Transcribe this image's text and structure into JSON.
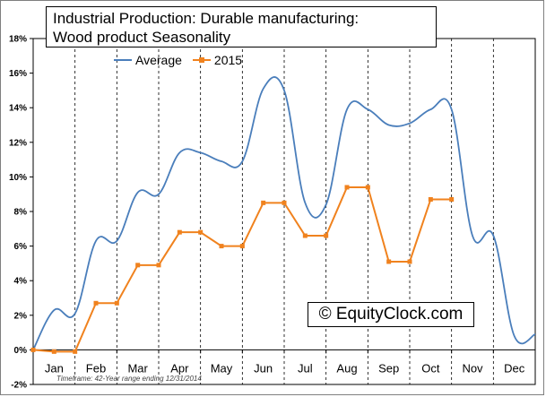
{
  "chart_data": {
    "type": "line",
    "title": [
      "Industrial Production: Durable manufacturing:",
      "Wood product Seasonality"
    ],
    "categories": [
      "Jan",
      "Feb",
      "Mar",
      "Apr",
      "May",
      "Jun",
      "Jul",
      "Aug",
      "Sep",
      "Oct",
      "Nov",
      "Dec"
    ],
    "ylim": [
      -2,
      18
    ],
    "yticks": [
      "-2%",
      "0%",
      "2%",
      "4%",
      "6%",
      "8%",
      "10%",
      "12%",
      "14%",
      "16%",
      "18%"
    ],
    "grid": "vertical dashed month separators",
    "legend_position": "top-left",
    "series": [
      {
        "name": "Average",
        "color": "#4a7ebb",
        "style": "smooth line",
        "x": [
          0,
          0.5,
          1,
          1.5,
          2,
          2.5,
          3,
          3.5,
          4,
          4.5,
          5,
          5.5,
          6,
          6.5,
          7,
          7.5,
          8,
          8.5,
          9,
          9.5,
          10,
          10.5,
          11,
          11.5,
          12
        ],
        "values": [
          0.0,
          2.3,
          2.1,
          6.3,
          6.3,
          9.1,
          9.0,
          11.4,
          11.4,
          10.9,
          10.9,
          15.1,
          15.0,
          8.5,
          8.4,
          13.9,
          13.9,
          13.0,
          13.1,
          13.9,
          13.9,
          6.6,
          6.6,
          0.8,
          0.9
        ]
      },
      {
        "name": "2015",
        "color": "#f0821e",
        "style": "line with square markers",
        "x": [
          0,
          0.5,
          1,
          1.5,
          2,
          2.5,
          3,
          3.5,
          4,
          4.5,
          5,
          5.5,
          6,
          6.5,
          7,
          7.5,
          8,
          8.5,
          9,
          9.5,
          10
        ],
        "values": [
          0.0,
          -0.1,
          -0.1,
          2.7,
          2.7,
          4.9,
          4.9,
          6.8,
          6.8,
          6.0,
          6.0,
          8.5,
          8.5,
          6.6,
          6.6,
          9.4,
          9.4,
          5.1,
          5.1,
          8.7,
          8.7
        ]
      }
    ],
    "annotation": "© EquityClock.com",
    "footnote": "Timeframe: 42-Year range ending 12/31/2014"
  }
}
